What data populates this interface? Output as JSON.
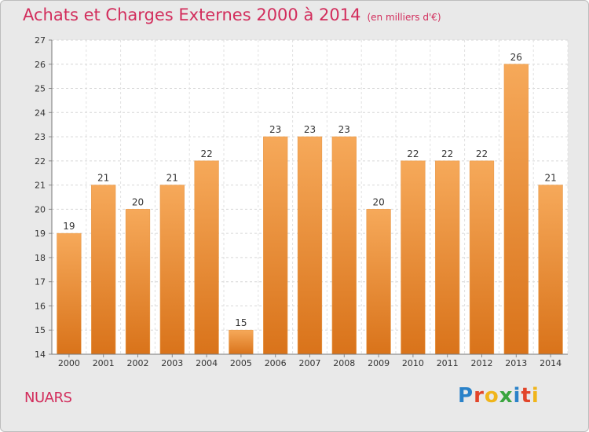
{
  "title": "Achats et Charges Externes 2000 à 2014",
  "unit": "(en milliers d'€)",
  "place": "NUARS",
  "logo": "Proxiti",
  "colors": {
    "title": "#d22d5c",
    "bar_top": "#f6a95a",
    "bar_bottom": "#d9731a",
    "background": "#e9e9e9"
  },
  "chart_data": {
    "type": "bar",
    "categories": [
      "2000",
      "2001",
      "2002",
      "2003",
      "2004",
      "2005",
      "2006",
      "2007",
      "2008",
      "2009",
      "2010",
      "2011",
      "2012",
      "2013",
      "2014"
    ],
    "values": [
      19,
      21,
      20,
      21,
      22,
      15,
      23,
      23,
      23,
      20,
      22,
      22,
      22,
      26,
      21
    ],
    "ylim": [
      14,
      27
    ],
    "yticks": [
      14,
      15,
      16,
      17,
      18,
      19,
      20,
      21,
      22,
      23,
      24,
      25,
      26,
      27
    ],
    "grid": true,
    "xlabel": "",
    "ylabel": ""
  }
}
